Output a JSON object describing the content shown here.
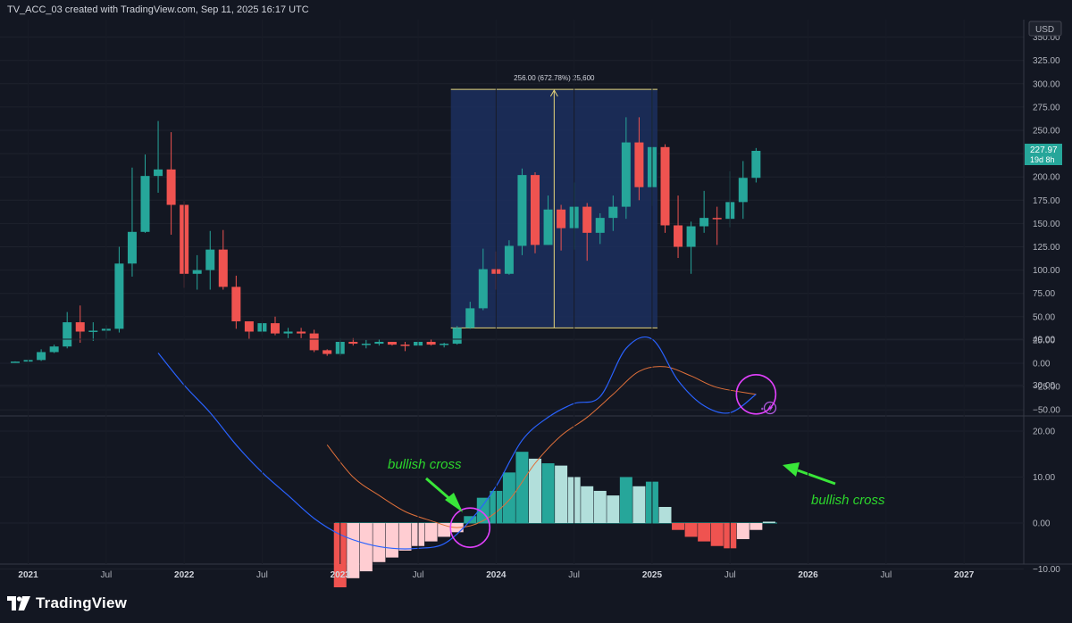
{
  "header": {
    "title": "TV_ACC_03 created with TradingView.com, Sep 11, 2025 16:17 UTC"
  },
  "footer": {
    "brand": "TradingView"
  },
  "colors": {
    "up": "#26a69a",
    "down": "#ef5350",
    "bg": "#131722",
    "grid": "#1e222d",
    "measure_fill": "#1c2f5e",
    "measure_line": "#e8d67a",
    "macd": "#2962ff",
    "signal": "#e0703a",
    "hist_up_strong": "#26a69a",
    "hist_up_weak": "#b2dfdb",
    "hist_down_strong": "#ef5350",
    "hist_down_weak": "#ffcdd2",
    "circle": "#e040fb",
    "arrow": "#39e639",
    "price_label": "#26a69a"
  },
  "chart_data": [
    {
      "type": "candlestick",
      "currency_label": "USD",
      "y_ticks": [
        "350.00",
        "325.00",
        "300.00",
        "275.00",
        "250.00",
        "225.00",
        "200.00",
        "175.00",
        "150.00",
        "125.00",
        "100.00",
        "75.00",
        "50.00",
        "25.00",
        "0.00",
        "−25.00",
        "−50.00"
      ],
      "ylim": [
        -50,
        350
      ],
      "x_ticks": [
        "2021",
        "Jul",
        "2022",
        "Jul",
        "2023",
        "Jul",
        "2024",
        "Jul",
        "2025",
        "Jul",
        "2026",
        "Jul",
        "2027"
      ],
      "last_price": "227.97",
      "countdown": "19d 8h",
      "measure_label": "256.00 (672.78%) 25,600",
      "candles": [
        {
          "t": "2020-12",
          "o": 1.5,
          "h": 2,
          "l": 1,
          "c": 1.8
        },
        {
          "t": "2021-01",
          "o": 1.8,
          "h": 5,
          "l": 1,
          "c": 3.5
        },
        {
          "t": "2021-02",
          "o": 3.5,
          "h": 15,
          "l": 2.5,
          "c": 12
        },
        {
          "t": "2021-03",
          "o": 12,
          "h": 20,
          "l": 11,
          "c": 18
        },
        {
          "t": "2021-04",
          "o": 18,
          "h": 55,
          "l": 16,
          "c": 44
        },
        {
          "t": "2021-05",
          "o": 44,
          "h": 62,
          "l": 22,
          "c": 34
        },
        {
          "t": "2021-06",
          "o": 34,
          "h": 44,
          "l": 24,
          "c": 35
        },
        {
          "t": "2021-07",
          "o": 35,
          "h": 41,
          "l": 26,
          "c": 37
        },
        {
          "t": "2021-08",
          "o": 37,
          "h": 125,
          "l": 33,
          "c": 107
        },
        {
          "t": "2021-09",
          "o": 107,
          "h": 210,
          "l": 93,
          "c": 141
        },
        {
          "t": "2021-10",
          "o": 141,
          "h": 224,
          "l": 140,
          "c": 201
        },
        {
          "t": "2021-11",
          "o": 201,
          "h": 260,
          "l": 183,
          "c": 208
        },
        {
          "t": "2021-12",
          "o": 208,
          "h": 248,
          "l": 138,
          "c": 170
        },
        {
          "t": "2022-01",
          "o": 170,
          "h": 174,
          "l": 81,
          "c": 96
        },
        {
          "t": "2022-02",
          "o": 96,
          "h": 116,
          "l": 79,
          "c": 100
        },
        {
          "t": "2022-03",
          "o": 100,
          "h": 142,
          "l": 79,
          "c": 122
        },
        {
          "t": "2022-04",
          "o": 122,
          "h": 143,
          "l": 79,
          "c": 82
        },
        {
          "t": "2022-05",
          "o": 82,
          "h": 94,
          "l": 37,
          "c": 45
        },
        {
          "t": "2022-06",
          "o": 45,
          "h": 45,
          "l": 26,
          "c": 34
        },
        {
          "t": "2022-07",
          "o": 34,
          "h": 45,
          "l": 30,
          "c": 43
        },
        {
          "t": "2022-08",
          "o": 43,
          "h": 50,
          "l": 30,
          "c": 32
        },
        {
          "t": "2022-09",
          "o": 32,
          "h": 38,
          "l": 27,
          "c": 34
        },
        {
          "t": "2022-10",
          "o": 34,
          "h": 38,
          "l": 27,
          "c": 32
        },
        {
          "t": "2022-11",
          "o": 32,
          "h": 36,
          "l": 12,
          "c": 14
        },
        {
          "t": "2022-12",
          "o": 14,
          "h": 15,
          "l": 8,
          "c": 10
        },
        {
          "t": "2023-01",
          "o": 10,
          "h": 27,
          "l": 8,
          "c": 23
        },
        {
          "t": "2023-02",
          "o": 23,
          "h": 27,
          "l": 19,
          "c": 21
        },
        {
          "t": "2023-03",
          "o": 21,
          "h": 25,
          "l": 16,
          "c": 21
        },
        {
          "t": "2023-04",
          "o": 21,
          "h": 26,
          "l": 19,
          "c": 23
        },
        {
          "t": "2023-05",
          "o": 23,
          "h": 23,
          "l": 19,
          "c": 20
        },
        {
          "t": "2023-06",
          "o": 20,
          "h": 23,
          "l": 13,
          "c": 19
        },
        {
          "t": "2023-07",
          "o": 19,
          "h": 27,
          "l": 19,
          "c": 23
        },
        {
          "t": "2023-08",
          "o": 23,
          "h": 26,
          "l": 19,
          "c": 20
        },
        {
          "t": "2023-09",
          "o": 20,
          "h": 22,
          "l": 17,
          "c": 21
        },
        {
          "t": "2023-10",
          "o": 21,
          "h": 40,
          "l": 20,
          "c": 38
        },
        {
          "t": "2023-11",
          "o": 38,
          "h": 66,
          "l": 37,
          "c": 59
        },
        {
          "t": "2023-12",
          "o": 59,
          "h": 123,
          "l": 57,
          "c": 101
        },
        {
          "t": "2024-01",
          "o": 101,
          "h": 120,
          "l": 79,
          "c": 96
        },
        {
          "t": "2024-02",
          "o": 96,
          "h": 132,
          "l": 95,
          "c": 126
        },
        {
          "t": "2024-03",
          "o": 126,
          "h": 209,
          "l": 116,
          "c": 202
        },
        {
          "t": "2024-04",
          "o": 202,
          "h": 205,
          "l": 118,
          "c": 127
        },
        {
          "t": "2024-05",
          "o": 127,
          "h": 180,
          "l": 127,
          "c": 165
        },
        {
          "t": "2024-06",
          "o": 165,
          "h": 170,
          "l": 121,
          "c": 145
        },
        {
          "t": "2024-07",
          "o": 145,
          "h": 194,
          "l": 122,
          "c": 168
        },
        {
          "t": "2024-08",
          "o": 168,
          "h": 172,
          "l": 110,
          "c": 140
        },
        {
          "t": "2024-09",
          "o": 140,
          "h": 161,
          "l": 128,
          "c": 156
        },
        {
          "t": "2024-10",
          "o": 156,
          "h": 180,
          "l": 142,
          "c": 168
        },
        {
          "t": "2024-11",
          "o": 168,
          "h": 264,
          "l": 155,
          "c": 237
        },
        {
          "t": "2024-12",
          "o": 237,
          "h": 264,
          "l": 175,
          "c": 189
        },
        {
          "t": "2025-01",
          "o": 189,
          "h": 295,
          "l": 169,
          "c": 232
        },
        {
          "t": "2025-02",
          "o": 232,
          "h": 235,
          "l": 140,
          "c": 148
        },
        {
          "t": "2025-03",
          "o": 148,
          "h": 180,
          "l": 113,
          "c": 125
        },
        {
          "t": "2025-04",
          "o": 125,
          "h": 152,
          "l": 96,
          "c": 147
        },
        {
          "t": "2025-05",
          "o": 147,
          "h": 185,
          "l": 140,
          "c": 156
        },
        {
          "t": "2025-06",
          "o": 156,
          "h": 168,
          "l": 127,
          "c": 155
        },
        {
          "t": "2025-07",
          "o": 155,
          "h": 206,
          "l": 146,
          "c": 173
        },
        {
          "t": "2025-08",
          "o": 173,
          "h": 217,
          "l": 155,
          "c": 199
        },
        {
          "t": "2025-09",
          "o": 199,
          "h": 231,
          "l": 194,
          "c": 227.97
        }
      ],
      "measure": {
        "t_start": "2023-10",
        "t_end": "2025-01",
        "low": 38,
        "high": 294
      }
    },
    {
      "type": "macd",
      "y_ticks": [
        "40.00",
        "30.00",
        "20.00",
        "10.00",
        "0.00",
        "−10.00"
      ],
      "ylim": [
        -15,
        45
      ],
      "annotations": [
        "bullish cross",
        "bullish cross"
      ],
      "macd_line": [
        {
          "t": "2021-11",
          "v": 37
        },
        {
          "t": "2022-01",
          "v": 30
        },
        {
          "t": "2022-03",
          "v": 24
        },
        {
          "t": "2022-05",
          "v": 17
        },
        {
          "t": "2022-07",
          "v": 11
        },
        {
          "t": "2022-09",
          "v": 6
        },
        {
          "t": "2022-11",
          "v": 1
        },
        {
          "t": "2023-01",
          "v": -2.5
        },
        {
          "t": "2023-03",
          "v": -4.5
        },
        {
          "t": "2023-05",
          "v": -5.5
        },
        {
          "t": "2023-07",
          "v": -5.5
        },
        {
          "t": "2023-09",
          "v": -4.5
        },
        {
          "t": "2023-11",
          "v": 0.5
        },
        {
          "t": "2024-01",
          "v": 8
        },
        {
          "t": "2024-03",
          "v": 18
        },
        {
          "t": "2024-05",
          "v": 23
        },
        {
          "t": "2024-07",
          "v": 26
        },
        {
          "t": "2024-09",
          "v": 27.5
        },
        {
          "t": "2024-11",
          "v": 38
        },
        {
          "t": "2025-01",
          "v": 40
        },
        {
          "t": "2025-03",
          "v": 31
        },
        {
          "t": "2025-05",
          "v": 25.5
        },
        {
          "t": "2025-07",
          "v": 24
        },
        {
          "t": "2025-09",
          "v": 28
        }
      ],
      "signal_line": [
        {
          "t": "2022-12",
          "v": 17
        },
        {
          "t": "2023-02",
          "v": 10
        },
        {
          "t": "2023-04",
          "v": 6
        },
        {
          "t": "2023-06",
          "v": 2.5
        },
        {
          "t": "2023-08",
          "v": 0.5
        },
        {
          "t": "2023-10",
          "v": -1
        },
        {
          "t": "2023-12",
          "v": 0.5
        },
        {
          "t": "2024-02",
          "v": 5
        },
        {
          "t": "2024-04",
          "v": 13
        },
        {
          "t": "2024-06",
          "v": 19
        },
        {
          "t": "2024-08",
          "v": 23
        },
        {
          "t": "2024-10",
          "v": 28
        },
        {
          "t": "2024-12",
          "v": 33
        },
        {
          "t": "2025-02",
          "v": 34
        },
        {
          "t": "2025-04",
          "v": 32
        },
        {
          "t": "2025-06",
          "v": 29.5
        },
        {
          "t": "2025-09",
          "v": 28
        }
      ],
      "histogram": [
        {
          "t": "2023-01",
          "v": -15,
          "s": "down_strong"
        },
        {
          "t": "2023-02",
          "v": -12,
          "s": "down_weak"
        },
        {
          "t": "2023-03",
          "v": -10.5,
          "s": "down_weak"
        },
        {
          "t": "2023-04",
          "v": -8.5,
          "s": "down_weak"
        },
        {
          "t": "2023-05",
          "v": -7.5,
          "s": "down_weak"
        },
        {
          "t": "2023-06",
          "v": -6,
          "s": "down_weak"
        },
        {
          "t": "2023-07",
          "v": -5,
          "s": "down_weak"
        },
        {
          "t": "2023-08",
          "v": -4,
          "s": "down_weak"
        },
        {
          "t": "2023-09",
          "v": -3,
          "s": "down_weak"
        },
        {
          "t": "2023-10",
          "v": -2,
          "s": "down_weak"
        },
        {
          "t": "2023-11",
          "v": 1.5,
          "s": "up_strong"
        },
        {
          "t": "2023-12",
          "v": 5.5,
          "s": "up_strong"
        },
        {
          "t": "2024-01",
          "v": 7,
          "s": "up_strong"
        },
        {
          "t": "2024-02",
          "v": 11,
          "s": "up_strong"
        },
        {
          "t": "2024-03",
          "v": 15.5,
          "s": "up_strong"
        },
        {
          "t": "2024-04",
          "v": 14,
          "s": "up_weak"
        },
        {
          "t": "2024-05",
          "v": 13,
          "s": "up_strong"
        },
        {
          "t": "2024-06",
          "v": 12.5,
          "s": "up_weak"
        },
        {
          "t": "2024-07",
          "v": 10,
          "s": "up_weak"
        },
        {
          "t": "2024-08",
          "v": 8,
          "s": "up_weak"
        },
        {
          "t": "2024-09",
          "v": 7,
          "s": "up_weak"
        },
        {
          "t": "2024-10",
          "v": 6,
          "s": "up_weak"
        },
        {
          "t": "2024-11",
          "v": 10,
          "s": "up_strong"
        },
        {
          "t": "2024-12",
          "v": 8,
          "s": "up_weak"
        },
        {
          "t": "2025-01",
          "v": 9,
          "s": "up_strong"
        },
        {
          "t": "2025-02",
          "v": 3.5,
          "s": "up_weak"
        },
        {
          "t": "2025-03",
          "v": -1.5,
          "s": "down_strong"
        },
        {
          "t": "2025-04",
          "v": -3,
          "s": "down_strong"
        },
        {
          "t": "2025-05",
          "v": -4,
          "s": "down_strong"
        },
        {
          "t": "2025-06",
          "v": -5,
          "s": "down_strong"
        },
        {
          "t": "2025-07",
          "v": -5.5,
          "s": "down_strong"
        },
        {
          "t": "2025-08",
          "v": -3.5,
          "s": "down_weak"
        },
        {
          "t": "2025-09",
          "v": -1.5,
          "s": "down_weak"
        },
        {
          "t": "2025-10",
          "v": 0.3,
          "s": "up_weak"
        }
      ],
      "circles": [
        {
          "t": "2023-11",
          "v": -1
        },
        {
          "t": "2025-09",
          "v": 28
        }
      ]
    }
  ]
}
